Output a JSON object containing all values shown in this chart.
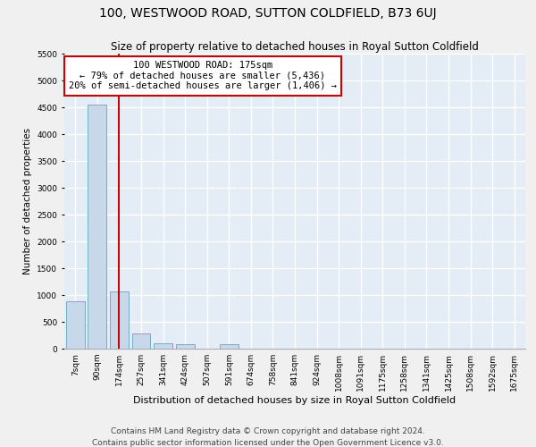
{
  "title": "100, WESTWOOD ROAD, SUTTON COLDFIELD, B73 6UJ",
  "subtitle": "Size of property relative to detached houses in Royal Sutton Coldfield",
  "xlabel": "Distribution of detached houses by size in Royal Sutton Coldfield",
  "ylabel": "Number of detached properties",
  "footnote1": "Contains HM Land Registry data © Crown copyright and database right 2024.",
  "footnote2": "Contains public sector information licensed under the Open Government Licence v3.0.",
  "categories": [
    "7sqm",
    "90sqm",
    "174sqm",
    "257sqm",
    "341sqm",
    "424sqm",
    "507sqm",
    "591sqm",
    "674sqm",
    "758sqm",
    "841sqm",
    "924sqm",
    "1008sqm",
    "1091sqm",
    "1175sqm",
    "1258sqm",
    "1341sqm",
    "1425sqm",
    "1508sqm",
    "1592sqm",
    "1675sqm"
  ],
  "values": [
    880,
    4550,
    1060,
    280,
    100,
    90,
    0,
    80,
    0,
    0,
    0,
    0,
    0,
    0,
    0,
    0,
    0,
    0,
    0,
    0,
    0
  ],
  "bar_color": "#c8d8eb",
  "bar_edge_color": "#7aaac8",
  "red_line_index": 2,
  "annotation_text": "100 WESTWOOD ROAD: 175sqm\n← 79% of detached houses are smaller (5,436)\n20% of semi-detached houses are larger (1,406) →",
  "annotation_box_color": "#ffffff",
  "annotation_box_edge_color": "#cc0000",
  "ylim": [
    0,
    5500
  ],
  "yticks": [
    0,
    500,
    1000,
    1500,
    2000,
    2500,
    3000,
    3500,
    4000,
    4500,
    5000,
    5500
  ],
  "background_color": "#e4ecf5",
  "grid_color": "#ffffff",
  "title_fontsize": 10,
  "subtitle_fontsize": 8.5,
  "xlabel_fontsize": 8,
  "ylabel_fontsize": 7.5,
  "tick_fontsize": 6.5,
  "annotation_fontsize": 7.5,
  "footnote_fontsize": 6.5
}
